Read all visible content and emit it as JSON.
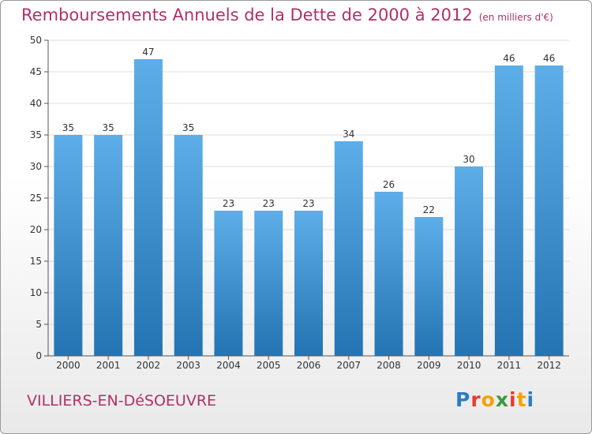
{
  "title": "Remboursements Annuels de la Dette de 2000 à 2012",
  "unit_label": "(en milliers d'€)",
  "place_name": "VILLIERS-EN-DéSOEUVRE",
  "logo": {
    "letters": [
      "P",
      "r",
      "o",
      "x",
      "i",
      "t",
      "i"
    ],
    "colors": [
      "#2b7cc6",
      "#e53c2d",
      "#f2a300",
      "#3a9a3a",
      "#e53c2d",
      "#f2a300",
      "#2b7cc6"
    ]
  },
  "colors": {
    "bar_top": "#5daee8",
    "bar_bottom": "#2474b3",
    "axis": "#555555",
    "title": "#b0306a"
  },
  "chart_data": {
    "type": "bar",
    "title": "Remboursements Annuels de la Dette de 2000 à 2012",
    "subtitle": "(en milliers d'€)",
    "categories": [
      "2000",
      "2001",
      "2002",
      "2003",
      "2004",
      "2005",
      "2006",
      "2007",
      "2008",
      "2009",
      "2010",
      "2011",
      "2012"
    ],
    "values": [
      35,
      35,
      47,
      35,
      23,
      23,
      23,
      34,
      26,
      22,
      30,
      46,
      46
    ],
    "yticks": [
      0,
      5,
      10,
      15,
      20,
      25,
      30,
      35,
      40,
      45,
      50
    ],
    "ylim": [
      0,
      50
    ],
    "grid": true,
    "legend": "none"
  }
}
